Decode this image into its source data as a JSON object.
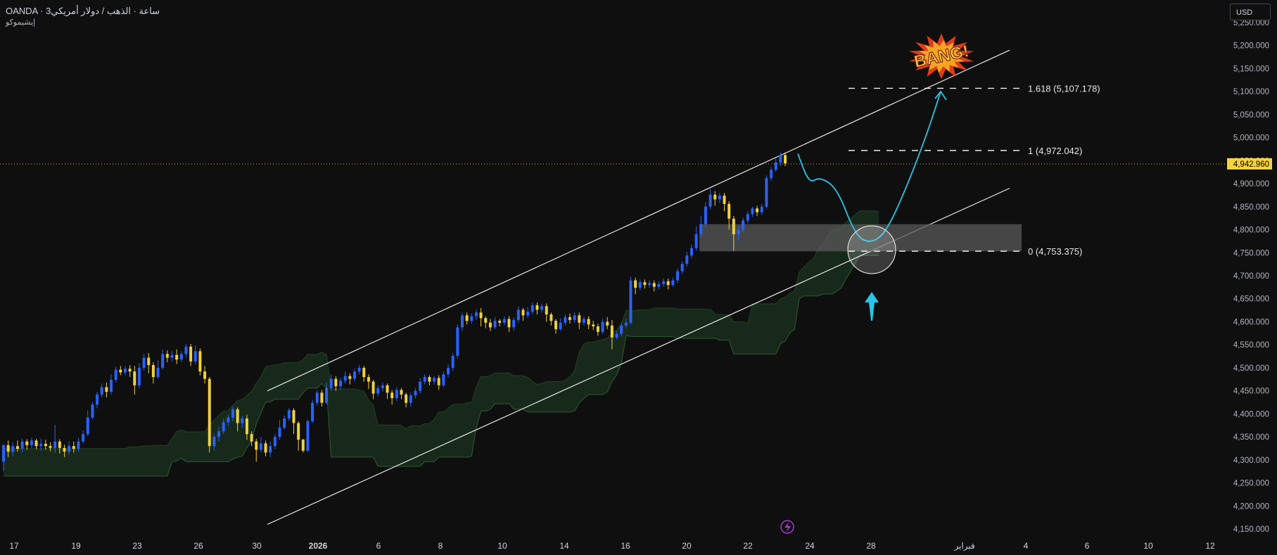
{
  "header": {
    "symbol_line": "OANDA · 3ساعة · الذهب / دولار أمريكي",
    "indicator_label": "إيشيموكو"
  },
  "currency": {
    "label": "USD"
  },
  "colors": {
    "background": "#0f0f0f",
    "bull_candle": "#2962ff",
    "bear_candle": "#f0d23c",
    "cloud_green": "#1b3320",
    "cloud_green_line": "#2e5c31",
    "cloud_red": "#3a1c1c",
    "channel_line": "#e8e8e8",
    "arrow_cyan": "#29c5e6",
    "price_label_bg": "#f5d33b",
    "zone_fill": "#5a5a5a"
  },
  "icons": {
    "event_icon": "lightning-bolt-icon",
    "burst_icon": "bang-burst-icon",
    "up_arrow_icon": "cyan-up-arrow-icon"
  },
  "chart_data": {
    "type": "candlestick",
    "title": "",
    "xlabel": "",
    "ylabel": "",
    "ylim": [
      4150,
      5250
    ],
    "current_price": "4,942.960",
    "current_price_value": 4942.96,
    "y_ticks": [
      "5,250.000",
      "5,200.000",
      "5,150.000",
      "5,100.000",
      "5,050.000",
      "5,000.000",
      "4,950.000",
      "4,900.000",
      "4,850.000",
      "4,800.000",
      "4,750.000",
      "4,700.000",
      "4,650.000",
      "4,600.000",
      "4,550.000",
      "4,500.000",
      "4,450.000",
      "4,400.000",
      "4,350.000",
      "4,300.000",
      "4,250.000",
      "4,200.000",
      "4,150.000"
    ],
    "x_ticks": [
      "17",
      "19",
      "23",
      "26",
      "30",
      "2026",
      "6",
      "8",
      "10",
      "14",
      "16",
      "20",
      "22",
      "24",
      "28",
      "فبراير",
      "4",
      "6",
      "10",
      "12"
    ],
    "x_tick_bold": [
      "2026"
    ],
    "fib_levels": [
      {
        "label": "1.618 (5,107.178)",
        "value": 5107.178
      },
      {
        "label": "1 (4,972.042)",
        "value": 4972.042
      },
      {
        "label": "0 (4,753.375)",
        "value": 4753.375
      }
    ],
    "zone": {
      "low": 4753,
      "high": 4812
    },
    "annotation": "BANG!",
    "channel": {
      "upper": [
        [
          0,
          4450
        ],
        [
          1,
          5190
        ]
      ],
      "lower": [
        [
          0,
          4160
        ],
        [
          1,
          4890
        ]
      ]
    },
    "projection": [
      4965,
      4900,
      4915,
      4890,
      4790,
      4770,
      4790,
      4890,
      5010,
      5100
    ],
    "candles": [
      [
        4296,
        4332,
        4275,
        4334
      ],
      [
        4332,
        4318,
        4306,
        4342
      ],
      [
        4318,
        4330,
        4308,
        4338
      ],
      [
        4330,
        4324,
        4318,
        4342
      ],
      [
        4324,
        4340,
        4316,
        4346
      ],
      [
        4340,
        4332,
        4322,
        4345
      ],
      [
        4332,
        4342,
        4326,
        4348
      ],
      [
        4342,
        4330,
        4323,
        4346
      ],
      [
        4330,
        4335,
        4320,
        4346
      ],
      [
        4335,
        4330,
        4322,
        4344
      ],
      [
        4330,
        4326,
        4319,
        4338
      ],
      [
        4326,
        4340,
        4316,
        4376
      ],
      [
        4340,
        4326,
        4314,
        4345
      ],
      [
        4326,
        4318,
        4306,
        4333
      ],
      [
        4318,
        4330,
        4312,
        4340
      ],
      [
        4330,
        4324,
        4316,
        4340
      ],
      [
        4324,
        4340,
        4318,
        4348
      ],
      [
        4340,
        4356,
        4336,
        4364
      ],
      [
        4356,
        4392,
        4352,
        4408
      ],
      [
        4392,
        4420,
        4388,
        4426
      ],
      [
        4420,
        4442,
        4412,
        4448
      ],
      [
        4442,
        4458,
        4436,
        4466
      ],
      [
        4458,
        4448,
        4436,
        4468
      ],
      [
        4448,
        4474,
        4442,
        4486
      ],
      [
        4474,
        4496,
        4468,
        4502
      ],
      [
        4496,
        4490,
        4484,
        4504
      ],
      [
        4490,
        4498,
        4484,
        4504
      ],
      [
        4498,
        4492,
        4480,
        4506
      ],
      [
        4492,
        4462,
        4442,
        4504
      ],
      [
        4462,
        4500,
        4456,
        4510
      ],
      [
        4500,
        4522,
        4494,
        4530
      ],
      [
        4522,
        4506,
        4488,
        4532
      ],
      [
        4506,
        4480,
        4466,
        4512
      ],
      [
        4480,
        4500,
        4476,
        4516
      ],
      [
        4500,
        4530,
        4496,
        4540
      ],
      [
        4530,
        4522,
        4512,
        4538
      ],
      [
        4522,
        4528,
        4514,
        4536
      ],
      [
        4528,
        4518,
        4508,
        4540
      ],
      [
        4518,
        4530,
        4512,
        4536
      ],
      [
        4530,
        4546,
        4522,
        4552
      ],
      [
        4546,
        4514,
        4504,
        4552
      ],
      [
        4514,
        4536,
        4508,
        4548
      ],
      [
        4536,
        4492,
        4484,
        4542
      ],
      [
        4492,
        4476,
        4466,
        4504
      ],
      [
        4476,
        4330,
        4316,
        4480
      ],
      [
        4330,
        4350,
        4320,
        4356
      ],
      [
        4350,
        4362,
        4340,
        4372
      ],
      [
        4362,
        4382,
        4356,
        4390
      ],
      [
        4382,
        4392,
        4374,
        4398
      ],
      [
        4392,
        4410,
        4384,
        4416
      ],
      [
        4410,
        4380,
        4362,
        4414
      ],
      [
        4380,
        4390,
        4370,
        4396
      ],
      [
        4390,
        4356,
        4344,
        4398
      ],
      [
        4356,
        4340,
        4330,
        4362
      ],
      [
        4340,
        4322,
        4296,
        4346
      ],
      [
        4322,
        4336,
        4316,
        4350
      ],
      [
        4336,
        4316,
        4308,
        4342
      ],
      [
        4316,
        4330,
        4306,
        4340
      ],
      [
        4330,
        4350,
        4324,
        4356
      ],
      [
        4350,
        4370,
        4344,
        4386
      ],
      [
        4370,
        4390,
        4366,
        4396
      ],
      [
        4390,
        4408,
        4384,
        4412
      ],
      [
        4408,
        4380,
        4356,
        4412
      ],
      [
        4380,
        4344,
        4320,
        4384
      ],
      [
        4344,
        4320,
        4316,
        4346
      ],
      [
        4320,
        4384,
        4318,
        4388
      ],
      [
        4384,
        4424,
        4380,
        4430
      ],
      [
        4424,
        4446,
        4418,
        4452
      ],
      [
        4446,
        4424,
        4416,
        4452
      ],
      [
        4424,
        4456,
        4420,
        4468
      ],
      [
        4456,
        4476,
        4450,
        4486
      ],
      [
        4476,
        4460,
        4450,
        4482
      ],
      [
        4460,
        4472,
        4452,
        4478
      ],
      [
        4472,
        4482,
        4466,
        4492
      ],
      [
        4482,
        4476,
        4464,
        4488
      ],
      [
        4476,
        4492,
        4470,
        4498
      ],
      [
        4492,
        4500,
        4486,
        4506
      ],
      [
        4500,
        4480,
        4470,
        4504
      ],
      [
        4480,
        4470,
        4454,
        4486
      ],
      [
        4470,
        4444,
        4432,
        4474
      ],
      [
        4444,
        4456,
        4438,
        4462
      ],
      [
        4456,
        4462,
        4448,
        4468
      ],
      [
        4462,
        4446,
        4432,
        4466
      ],
      [
        4446,
        4434,
        4420,
        4452
      ],
      [
        4434,
        4452,
        4428,
        4458
      ],
      [
        4452,
        4442,
        4432,
        4456
      ],
      [
        4442,
        4424,
        4414,
        4446
      ],
      [
        4424,
        4440,
        4416,
        4446
      ],
      [
        4440,
        4450,
        4434,
        4456
      ],
      [
        4450,
        4470,
        4444,
        4478
      ],
      [
        4470,
        4480,
        4464,
        4486
      ],
      [
        4480,
        4470,
        4462,
        4484
      ],
      [
        4470,
        4478,
        4464,
        4482
      ],
      [
        4478,
        4462,
        4452,
        4484
      ],
      [
        4462,
        4486,
        4458,
        4492
      ],
      [
        4486,
        4500,
        4480,
        4508
      ],
      [
        4500,
        4526,
        4494,
        4532
      ],
      [
        4526,
        4588,
        4520,
        4594
      ],
      [
        4588,
        4614,
        4580,
        4620
      ],
      [
        4614,
        4602,
        4594,
        4620
      ],
      [
        4602,
        4612,
        4596,
        4618
      ],
      [
        4612,
        4620,
        4604,
        4626
      ],
      [
        4620,
        4608,
        4590,
        4630
      ],
      [
        4608,
        4598,
        4586,
        4612
      ],
      [
        4598,
        4588,
        4580,
        4606
      ],
      [
        4588,
        4602,
        4584,
        4610
      ],
      [
        4602,
        4598,
        4590,
        4606
      ],
      [
        4598,
        4606,
        4592,
        4612
      ],
      [
        4606,
        4588,
        4578,
        4612
      ],
      [
        4588,
        4604,
        4580,
        4610
      ],
      [
        4604,
        4626,
        4598,
        4634
      ],
      [
        4626,
        4614,
        4602,
        4630
      ],
      [
        4614,
        4622,
        4608,
        4632
      ],
      [
        4622,
        4636,
        4616,
        4642
      ],
      [
        4636,
        4626,
        4616,
        4642
      ],
      [
        4626,
        4634,
        4620,
        4640
      ],
      [
        4634,
        4616,
        4600,
        4640
      ],
      [
        4616,
        4602,
        4592,
        4620
      ],
      [
        4602,
        4584,
        4574,
        4606
      ],
      [
        4584,
        4598,
        4580,
        4608
      ],
      [
        4598,
        4610,
        4592,
        4616
      ],
      [
        4610,
        4604,
        4596,
        4618
      ],
      [
        4604,
        4614,
        4598,
        4620
      ],
      [
        4614,
        4598,
        4584,
        4620
      ],
      [
        4598,
        4606,
        4592,
        4612
      ],
      [
        4606,
        4594,
        4584,
        4612
      ],
      [
        4594,
        4590,
        4582,
        4602
      ],
      [
        4590,
        4578,
        4570,
        4596
      ],
      [
        4578,
        4600,
        4574,
        4606
      ],
      [
        4600,
        4592,
        4584,
        4610
      ],
      [
        4592,
        4566,
        4540,
        4604
      ],
      [
        4566,
        4574,
        4562,
        4580
      ],
      [
        4574,
        4592,
        4568,
        4598
      ],
      [
        4592,
        4598,
        4586,
        4606
      ],
      [
        4598,
        4690,
        4594,
        4698
      ],
      [
        4690,
        4674,
        4660,
        4696
      ],
      [
        4674,
        4686,
        4668,
        4692
      ],
      [
        4686,
        4680,
        4672,
        4692
      ],
      [
        4680,
        4684,
        4674,
        4690
      ],
      [
        4684,
        4676,
        4666,
        4690
      ],
      [
        4676,
        4682,
        4670,
        4688
      ],
      [
        4682,
        4688,
        4676,
        4694
      ],
      [
        4688,
        4680,
        4670,
        4694
      ],
      [
        4680,
        4690,
        4676,
        4696
      ],
      [
        4690,
        4710,
        4684,
        4716
      ],
      [
        4710,
        4726,
        4704,
        4732
      ],
      [
        4726,
        4744,
        4720,
        4752
      ],
      [
        4744,
        4760,
        4738,
        4768
      ],
      [
        4760,
        4790,
        4754,
        4808
      ],
      [
        4790,
        4812,
        4784,
        4830
      ],
      [
        4812,
        4850,
        4806,
        4860
      ],
      [
        4850,
        4876,
        4844,
        4888
      ],
      [
        4876,
        4866,
        4852,
        4884
      ],
      [
        4866,
        4874,
        4858,
        4880
      ],
      [
        4874,
        4856,
        4840,
        4880
      ],
      [
        4856,
        4824,
        4800,
        4862
      ],
      [
        4824,
        4790,
        4754,
        4830
      ],
      [
        4790,
        4800,
        4776,
        4808
      ],
      [
        4800,
        4820,
        4794,
        4826
      ],
      [
        4820,
        4834,
        4814,
        4840
      ],
      [
        4834,
        4846,
        4828,
        4850
      ],
      [
        4846,
        4838,
        4830,
        4852
      ],
      [
        4838,
        4850,
        4832,
        4856
      ],
      [
        4850,
        4912,
        4846,
        4918
      ],
      [
        4912,
        4930,
        4906,
        4936
      ],
      [
        4930,
        4946,
        4926,
        4956
      ],
      [
        4946,
        4962,
        4938,
        4968
      ],
      [
        4962,
        4944,
        4938,
        4968
      ]
    ]
  }
}
